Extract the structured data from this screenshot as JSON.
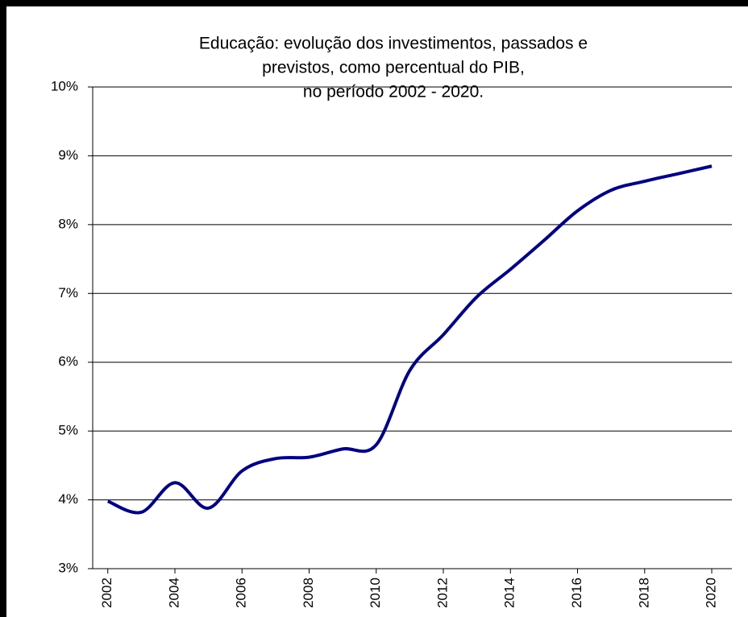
{
  "chart_data": {
    "type": "line",
    "title": [
      "Educação: evolução dos investimentos, passados e",
      "previstos, como percentual do PIB,",
      "no período 2002 - 2020."
    ],
    "x": [
      2002,
      2003,
      2004,
      2005,
      2006,
      2007,
      2008,
      2009,
      2010,
      2011,
      2012,
      2013,
      2014,
      2015,
      2016,
      2017,
      2018,
      2019,
      2020
    ],
    "series": [
      {
        "color": "#000080",
        "values": [
          3.98,
          3.82,
          4.25,
          3.88,
          4.42,
          4.6,
          4.62,
          4.74,
          4.8,
          5.88,
          6.4,
          6.95,
          7.35,
          7.77,
          8.2,
          8.5,
          8.63,
          8.74,
          8.85
        ]
      }
    ],
    "xlim": [
      2001.55,
      2020.6
    ],
    "xticks": [
      2002,
      2004,
      2006,
      2008,
      2010,
      2012,
      2014,
      2016,
      2018,
      2020
    ],
    "ylim": [
      3,
      10
    ],
    "yticks": [
      {
        "value": 3,
        "label": "3%"
      },
      {
        "value": 4,
        "label": "4%"
      },
      {
        "value": 5,
        "label": "5%"
      },
      {
        "value": 6,
        "label": "6%"
      },
      {
        "value": 7,
        "label": "7%"
      },
      {
        "value": 8,
        "label": "8%"
      },
      {
        "value": 9,
        "label": "9%"
      },
      {
        "value": 10,
        "label": "10%"
      }
    ],
    "grid": true
  }
}
